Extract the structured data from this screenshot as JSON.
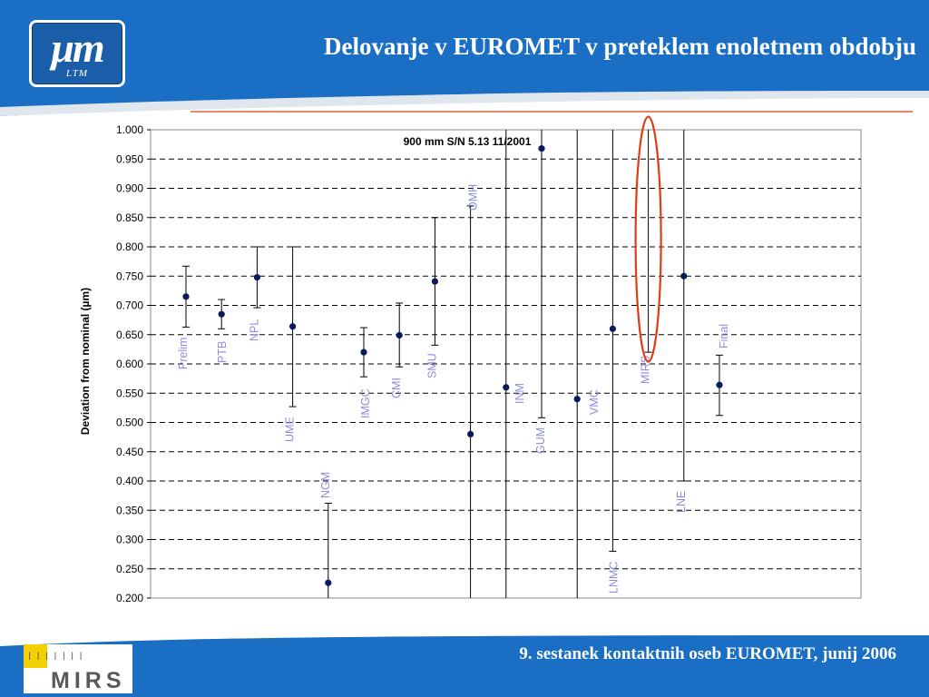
{
  "header": {
    "logo_text": "μm",
    "logo_subtext": "LTM",
    "title": "Delovanje v EUROMET v preteklem enoletnem obdobju"
  },
  "footer": {
    "text": "9. sestanek kontaktnih oseb EUROMET, junij 2006",
    "logo_text": "MIRS"
  },
  "colors": {
    "banner": "#1a6fc4",
    "point": "#0a1a5c",
    "label": "#8c8ce6",
    "highlight": "#e03c14"
  },
  "chart_data": {
    "type": "scatter",
    "title": "900 mm S/N 5.13 11/2001",
    "ylabel": "Deviation from nominal (µm)",
    "xlabel": "",
    "ylim": [
      0.2,
      1.0
    ],
    "yticks": [
      "1.000",
      "0.950",
      "0.900",
      "0.850",
      "0.800",
      "0.750",
      "0.700",
      "0.650",
      "0.600",
      "0.550",
      "0.500",
      "0.450",
      "0.400",
      "0.350",
      "0.300",
      "0.250",
      "0.200"
    ],
    "grid": true,
    "highlighted_label": "MIRS",
    "points": [
      {
        "label": "Prelim",
        "y": 0.715,
        "low": 0.663,
        "high": 0.767
      },
      {
        "label": "PTB",
        "y": 0.685,
        "low": 0.66,
        "high": 0.71
      },
      {
        "label": "NPL",
        "y": 0.748,
        "low": 0.696,
        "high": 0.8
      },
      {
        "label": "UME",
        "y": 0.664,
        "low": 0.527,
        "high": 0.8
      },
      {
        "label": "NGM",
        "y": 0.226,
        "low": 0.2,
        "high": 0.362
      },
      {
        "label": "IMGC",
        "y": 0.62,
        "low": 0.578,
        "high": 0.662
      },
      {
        "label": "CMI",
        "y": 0.649,
        "low": 0.595,
        "high": 0.704
      },
      {
        "label": "SMU",
        "y": 0.741,
        "low": 0.632,
        "high": 0.85
      },
      {
        "label": "OMH",
        "y": 0.48,
        "low": 0.2,
        "high": 0.87
      },
      {
        "label": "INM",
        "y": 0.56,
        "low": 0.2,
        "high": 1.0
      },
      {
        "label": "GUM",
        "y": 0.968,
        "low": 0.508,
        "high": 1.0
      },
      {
        "label": "VMC",
        "y": 0.54,
        "low": 0.2,
        "high": 1.0
      },
      {
        "label": "LNMC",
        "y": 0.66,
        "low": 0.28,
        "high": 1.0
      },
      {
        "label": "MIRS",
        "y": null,
        "low": 0.62,
        "high": 1.0
      },
      {
        "label": "LNE",
        "y": 0.75,
        "low": 0.4,
        "high": 1.0
      },
      {
        "label": "Final",
        "y": 0.564,
        "low": 0.512,
        "high": 0.615
      }
    ]
  }
}
